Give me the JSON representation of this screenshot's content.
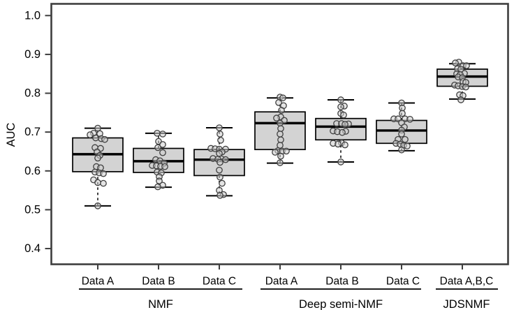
{
  "figure": {
    "title": "",
    "background": "#ffffff"
  },
  "chart_data": {
    "type": "boxplot",
    "title": "",
    "xlabel": "",
    "ylabel": "AUC",
    "ylim": [
      0.4,
      1.0
    ],
    "yticks": [
      1.0,
      0.9,
      0.8,
      0.7,
      0.6,
      0.5,
      0.4
    ],
    "ytick_labels": [
      "1.0",
      "0.9",
      "0.8",
      "0.7",
      "0.6",
      "0.5",
      "0.4"
    ],
    "grid": false,
    "frame": true,
    "legend": "none",
    "groups": [
      {
        "label": "NMF",
        "categories": [
          "Data A",
          "Data B",
          "Data C"
        ]
      },
      {
        "label": "Deep semi-NMF",
        "categories": [
          "Data A",
          "Data B",
          "Data C"
        ]
      },
      {
        "label": "JDSNMF",
        "categories": [
          "Data A,B,C"
        ]
      }
    ],
    "boxes": [
      {
        "group": "NMF",
        "category": "Data A",
        "whisker_low": 0.51,
        "q1": 0.598,
        "median": 0.643,
        "q3": 0.685,
        "whisker_high": 0.71,
        "points": [
          [
            0.71,
            0
          ],
          [
            0.697,
            -6
          ],
          [
            0.696,
            3
          ],
          [
            0.693,
            -11
          ],
          [
            0.685,
            -3
          ],
          [
            0.683,
            5
          ],
          [
            0.681,
            10
          ],
          [
            0.66,
            -4
          ],
          [
            0.658,
            4
          ],
          [
            0.649,
            -1
          ],
          [
            0.64,
            3
          ],
          [
            0.633,
            0
          ],
          [
            0.611,
            -2
          ],
          [
            0.608,
            4
          ],
          [
            0.597,
            -4
          ],
          [
            0.595,
            2
          ],
          [
            0.593,
            8
          ],
          [
            0.577,
            -6
          ],
          [
            0.57,
            0
          ],
          [
            0.568,
            8
          ],
          [
            0.51,
            0
          ]
        ]
      },
      {
        "group": "NMF",
        "category": "Data B",
        "whisker_low": 0.558,
        "q1": 0.596,
        "median": 0.625,
        "q3": 0.658,
        "whisker_high": 0.697,
        "points": [
          [
            0.697,
            -2
          ],
          [
            0.695,
            6
          ],
          [
            0.676,
            0
          ],
          [
            0.668,
            6
          ],
          [
            0.66,
            -1
          ],
          [
            0.647,
            6
          ],
          [
            0.629,
            -4
          ],
          [
            0.626,
            2
          ],
          [
            0.62,
            8
          ],
          [
            0.614,
            -9
          ],
          [
            0.613,
            -3
          ],
          [
            0.612,
            3
          ],
          [
            0.611,
            9
          ],
          [
            0.597,
            -2
          ],
          [
            0.595,
            4
          ],
          [
            0.585,
            1
          ],
          [
            0.574,
            1
          ],
          [
            0.563,
            6
          ],
          [
            0.559,
            -1
          ]
        ]
      },
      {
        "group": "NMF",
        "category": "Data C",
        "whisker_low": 0.536,
        "q1": 0.588,
        "median": 0.629,
        "q3": 0.655,
        "whisker_high": 0.711,
        "points": [
          [
            0.711,
            0
          ],
          [
            0.695,
            1
          ],
          [
            0.679,
            2
          ],
          [
            0.658,
            -12
          ],
          [
            0.657,
            -6
          ],
          [
            0.656,
            0
          ],
          [
            0.656,
            9
          ],
          [
            0.649,
            4
          ],
          [
            0.645,
            0
          ],
          [
            0.632,
            -9
          ],
          [
            0.631,
            3
          ],
          [
            0.63,
            -2
          ],
          [
            0.629,
            9
          ],
          [
            0.622,
            1
          ],
          [
            0.602,
            0
          ],
          [
            0.584,
            1
          ],
          [
            0.568,
            4
          ],
          [
            0.55,
            0
          ],
          [
            0.539,
            6
          ],
          [
            0.537,
            1
          ]
        ]
      },
      {
        "group": "Deep semi-NMF",
        "category": "Data A",
        "whisker_low": 0.62,
        "q1": 0.655,
        "median": 0.723,
        "q3": 0.752,
        "whisker_high": 0.788,
        "points": [
          [
            0.79,
            0
          ],
          [
            0.788,
            4
          ],
          [
            0.776,
            -2
          ],
          [
            0.768,
            5
          ],
          [
            0.756,
            2
          ],
          [
            0.739,
            1
          ],
          [
            0.736,
            -5
          ],
          [
            0.73,
            6
          ],
          [
            0.723,
            0
          ],
          [
            0.709,
            1
          ],
          [
            0.695,
            0
          ],
          [
            0.68,
            1
          ],
          [
            0.666,
            0
          ],
          [
            0.652,
            -3
          ],
          [
            0.651,
            3
          ],
          [
            0.651,
            9
          ],
          [
            0.648,
            -7
          ],
          [
            0.638,
            1
          ],
          [
            0.621,
            0
          ]
        ]
      },
      {
        "group": "Deep semi-NMF",
        "category": "Data B",
        "whisker_low": 0.623,
        "q1": 0.68,
        "median": 0.714,
        "q3": 0.735,
        "whisker_high": 0.783,
        "points": [
          [
            0.783,
            0
          ],
          [
            0.767,
            5
          ],
          [
            0.765,
            0
          ],
          [
            0.748,
            0
          ],
          [
            0.744,
            4
          ],
          [
            0.722,
            -6
          ],
          [
            0.722,
            1
          ],
          [
            0.721,
            11
          ],
          [
            0.72,
            6
          ],
          [
            0.703,
            -11
          ],
          [
            0.701,
            -5
          ],
          [
            0.702,
            7
          ],
          [
            0.699,
            2
          ],
          [
            0.671,
            -11
          ],
          [
            0.672,
            1
          ],
          [
            0.669,
            -4
          ],
          [
            0.667,
            6
          ],
          [
            0.623,
            0
          ]
        ]
      },
      {
        "group": "Deep semi-NMF",
        "category": "Data C",
        "whisker_low": 0.652,
        "q1": 0.671,
        "median": 0.704,
        "q3": 0.73,
        "whisker_high": 0.775,
        "points": [
          [
            0.775,
            0
          ],
          [
            0.762,
            1
          ],
          [
            0.748,
            1
          ],
          [
            0.734,
            -11
          ],
          [
            0.734,
            -5
          ],
          [
            0.734,
            5
          ],
          [
            0.733,
            12
          ],
          [
            0.724,
            0
          ],
          [
            0.713,
            4
          ],
          [
            0.705,
            0
          ],
          [
            0.695,
            0
          ],
          [
            0.681,
            -5
          ],
          [
            0.681,
            5
          ],
          [
            0.671,
            -8
          ],
          [
            0.669,
            -2
          ],
          [
            0.666,
            3
          ],
          [
            0.664,
            8
          ],
          [
            0.654,
            0
          ]
        ]
      },
      {
        "group": "JDSNMF",
        "category": "Data A,B,C",
        "whisker_low": 0.785,
        "q1": 0.818,
        "median": 0.843,
        "q3": 0.862,
        "whisker_high": 0.876,
        "points": [
          [
            0.88,
            -5
          ],
          [
            0.878,
            -10
          ],
          [
            0.871,
            1
          ],
          [
            0.871,
            6
          ],
          [
            0.863,
            -7
          ],
          [
            0.862,
            -2
          ],
          [
            0.851,
            3
          ],
          [
            0.85,
            -8
          ],
          [
            0.848,
            -3
          ],
          [
            0.842,
            -6
          ],
          [
            0.84,
            0
          ],
          [
            0.83,
            1
          ],
          [
            0.828,
            5
          ],
          [
            0.821,
            -11
          ],
          [
            0.819,
            -6
          ],
          [
            0.817,
            0
          ],
          [
            0.816,
            5
          ],
          [
            0.796,
            -4
          ],
          [
            0.794,
            1
          ],
          [
            0.783,
            -2
          ]
        ]
      }
    ],
    "colors": {
      "box_fill": "#d3d3d3",
      "box_border": "#000000",
      "median": "#000000",
      "whisker": "#000000",
      "point_stroke": "#3f3f3f",
      "point_fill": "#cecece",
      "frame": "#3e3e3e",
      "text": "#000000",
      "background": "#ffffff"
    }
  }
}
